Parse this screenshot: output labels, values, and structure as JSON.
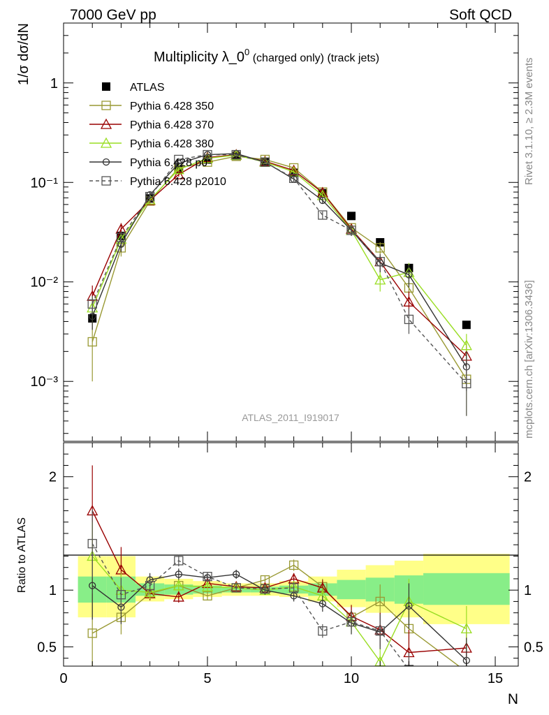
{
  "header": {
    "energy": "7000 GeV pp",
    "process": "Soft QCD"
  },
  "side_labels": {
    "rivet": "Rivet 3.1.10, ≥ 2.3M events",
    "mcplots": "mcplots.cern.ch [arXiv:1306.3436]"
  },
  "watermark": "ATLAS_2011_I919017",
  "chart_data": [
    {
      "type": "scatter",
      "title_main": "Multiplicity λ_0",
      "title_sup": "0",
      "title_tail": " (charged only) (track jets)",
      "ylabel": "1/σ dσ/dN",
      "ylog": true,
      "ylim": [
        0.00025,
        4
      ],
      "xlim": [
        0,
        15.8
      ],
      "x": [
        1,
        2,
        3,
        4,
        5,
        6,
        7,
        8,
        9,
        10,
        11,
        12,
        14
      ],
      "ytick_labels": [
        "10⁻³",
        "10⁻²",
        "10⁻¹",
        "1"
      ],
      "ytick_values": [
        0.001,
        0.01,
        0.1,
        1
      ],
      "series": [
        {
          "name": "ATLAS",
          "color": "#000000",
          "marker": "square-filled",
          "values": [
            0.0043,
            0.029,
            0.069,
            0.135,
            0.17,
            0.185,
            0.16,
            0.125,
            0.078,
            0.046,
            0.025,
            0.0138,
            0.0037
          ]
        },
        {
          "name": "Pythia 6.428 350",
          "color": "#999933",
          "marker": "square-open",
          "dash": false,
          "values": [
            0.0025,
            0.022,
            0.065,
            0.14,
            0.16,
            0.183,
            0.17,
            0.14,
            0.08,
            0.035,
            0.022,
            0.0087,
            0.00105
          ],
          "err": [
            0.0015,
            0.004,
            0.004,
            0.006,
            0.006,
            0.006,
            0.006,
            0.006,
            0.005,
            0.004,
            0.003,
            0.002,
            0.0006
          ]
        },
        {
          "name": "Pythia 6.428 370",
          "color": "#990000",
          "marker": "triangle-open",
          "dash": false,
          "values": [
            0.0072,
            0.034,
            0.066,
            0.12,
            0.178,
            0.19,
            0.163,
            0.132,
            0.079,
            0.034,
            0.016,
            0.0063,
            0.0018
          ],
          "err": [
            0.002,
            0.005,
            0.004,
            0.006,
            0.006,
            0.006,
            0.006,
            0.006,
            0.005,
            0.004,
            0.003,
            0.0017,
            0.0006
          ]
        },
        {
          "name": "Pythia 6.428 380",
          "color": "#99dd22",
          "marker": "triangle-open",
          "dash": false,
          "values": [
            0.0055,
            0.027,
            0.067,
            0.135,
            0.175,
            0.188,
            0.16,
            0.128,
            0.074,
            0.033,
            0.0105,
            0.0125,
            0.0023
          ],
          "err": [
            0.0015,
            0.004,
            0.004,
            0.006,
            0.006,
            0.006,
            0.006,
            0.006,
            0.005,
            0.004,
            0.0025,
            0.003,
            0.0007
          ]
        },
        {
          "name": "Pythia 6.428 p0",
          "color": "#333333",
          "marker": "circle-open",
          "dash": false,
          "values": [
            0.0045,
            0.024,
            0.075,
            0.155,
            0.19,
            0.195,
            0.16,
            0.108,
            0.066,
            0.033,
            0.0155,
            0.0118,
            0.0014
          ],
          "err": [
            0.0012,
            0.004,
            0.004,
            0.006,
            0.006,
            0.006,
            0.006,
            0.006,
            0.005,
            0.004,
            0.003,
            0.003,
            0.0006
          ]
        },
        {
          "name": "Pythia 6.428 p2010",
          "color": "#555555",
          "marker": "square-open",
          "dash": true,
          "values": [
            0.006,
            0.028,
            0.072,
            0.17,
            0.19,
            0.19,
            0.16,
            0.11,
            0.047,
            0.033,
            0.016,
            0.0042,
            0.00095
          ],
          "err": [
            0.0012,
            0.004,
            0.004,
            0.006,
            0.006,
            0.006,
            0.006,
            0.006,
            0.004,
            0.004,
            0.003,
            0.0012,
            0.0005
          ]
        }
      ],
      "legend_position": "top-left"
    },
    {
      "type": "line",
      "ylabel": "Ratio to ATLAS",
      "xlabel": "N",
      "ylim": [
        0.33,
        2.3
      ],
      "xlim": [
        0,
        15.8
      ],
      "xtick_labels": [
        "0",
        "5",
        "10",
        "15"
      ],
      "xtick_values": [
        0,
        5,
        10,
        15
      ],
      "ytick_labels": [
        "0.5",
        "1",
        "2"
      ],
      "ytick_values": [
        0.5,
        1,
        2
      ],
      "bands": {
        "edges": [
          0.5,
          1.5,
          2.5,
          3.5,
          4.5,
          5.5,
          6.5,
          7.5,
          8.5,
          9.5,
          10.5,
          11.5,
          12.5,
          15.5
        ],
        "green_lo": [
          0.89,
          0.89,
          0.95,
          0.96,
          0.97,
          0.98,
          0.98,
          0.97,
          0.95,
          0.92,
          0.9,
          0.88,
          0.87
        ],
        "green_hi": [
          1.12,
          1.12,
          1.06,
          1.05,
          1.04,
          1.03,
          1.03,
          1.04,
          1.06,
          1.09,
          1.11,
          1.13,
          1.15
        ],
        "yellow_lo": [
          0.76,
          0.76,
          0.9,
          0.92,
          0.94,
          0.95,
          0.95,
          0.94,
          0.9,
          0.85,
          0.8,
          0.76,
          0.7
        ],
        "yellow_hi": [
          1.3,
          1.3,
          1.12,
          1.1,
          1.08,
          1.06,
          1.06,
          1.08,
          1.12,
          1.18,
          1.22,
          1.26,
          1.32
        ]
      },
      "series": [
        {
          "name": "Pythia 6.428 350",
          "values": [
            0.62,
            0.76,
            0.97,
            1.04,
            0.95,
            1.02,
            1.09,
            1.22,
            1.03,
            0.76,
            0.9,
            0.66,
            0.28
          ],
          "err": [
            0.35,
            0.15,
            0.06,
            0.05,
            0.04,
            0.04,
            0.04,
            0.05,
            0.07,
            0.1,
            0.15,
            0.2,
            0.3
          ]
        },
        {
          "name": "Pythia 6.428 370",
          "values": [
            1.7,
            1.18,
            0.97,
            0.94,
            1.06,
            1.03,
            1.02,
            1.1,
            1.02,
            0.77,
            0.65,
            0.45,
            0.49
          ],
          "err": [
            0.4,
            0.2,
            0.06,
            0.05,
            0.04,
            0.04,
            0.04,
            0.05,
            0.07,
            0.1,
            0.15,
            0.2,
            0.2
          ]
        },
        {
          "name": "Pythia 6.428 380",
          "values": [
            1.3,
            1.0,
            0.98,
            1.04,
            1.03,
            1.02,
            1.0,
            1.03,
            0.95,
            0.72,
            0.37,
            0.9,
            0.66
          ],
          "err": [
            0.3,
            0.15,
            0.06,
            0.05,
            0.04,
            0.04,
            0.04,
            0.05,
            0.07,
            0.1,
            0.12,
            0.2,
            0.2
          ]
        },
        {
          "name": "Pythia 6.428 p0",
          "values": [
            1.04,
            0.85,
            1.09,
            1.14,
            1.11,
            1.14,
            1.0,
            0.95,
            0.88,
            0.71,
            0.63,
            0.86,
            0.38
          ],
          "err": [
            0.3,
            0.15,
            0.06,
            0.05,
            0.04,
            0.04,
            0.04,
            0.05,
            0.07,
            0.1,
            0.15,
            0.2,
            0.2
          ]
        },
        {
          "name": "Pythia 6.428 p2010",
          "values": [
            1.41,
            0.96,
            1.04,
            1.26,
            1.12,
            1.02,
            1.01,
            1.02,
            0.64,
            0.72,
            0.64,
            0.3,
            0.26
          ],
          "err": [
            0.3,
            0.15,
            0.06,
            0.05,
            0.04,
            0.04,
            0.04,
            0.05,
            0.06,
            0.1,
            0.15,
            0.15,
            0.15
          ]
        }
      ]
    }
  ]
}
